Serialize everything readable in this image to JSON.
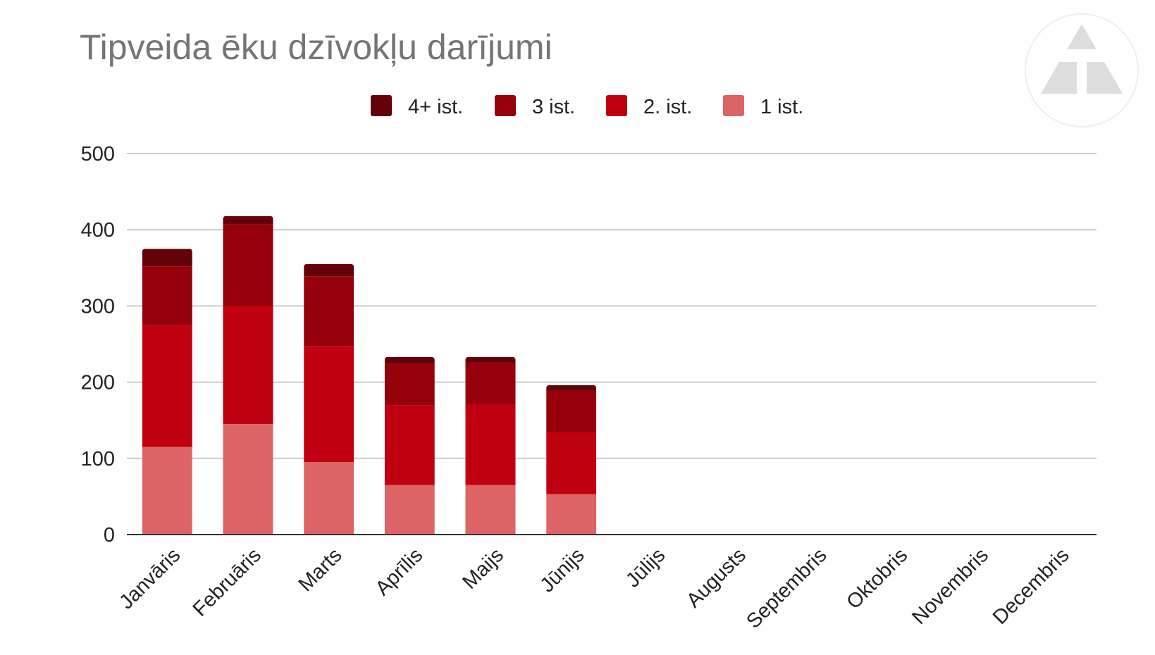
{
  "chart_data": {
    "type": "bar",
    "stacked": true,
    "title": "Tipveida ēku dzīvokļu darījumi",
    "xlabel": "",
    "ylabel": "",
    "ylim": [
      0,
      500
    ],
    "yticks": [
      0,
      100,
      200,
      300,
      400,
      500
    ],
    "grid": true,
    "legend_position": "top",
    "categories": [
      "Janvāris",
      "Februāris",
      "Marts",
      "Aprīlis",
      "Maijs",
      "Jūnijs",
      "Jūlijs",
      "Augusts",
      "Septembris",
      "Oktobris",
      "Novembris",
      "Decembris"
    ],
    "series": [
      {
        "name": "1 ist.",
        "color": "#dc6466",
        "values": [
          115,
          145,
          95,
          65,
          65,
          53,
          0,
          0,
          0,
          0,
          0,
          0
        ]
      },
      {
        "name": "2. ist.",
        "color": "#c00010",
        "values": [
          160,
          155,
          152,
          105,
          106,
          81,
          0,
          0,
          0,
          0,
          0,
          0
        ]
      },
      {
        "name": "3 ist.",
        "color": "#95000a",
        "values": [
          77,
          107,
          92,
          54,
          55,
          55,
          0,
          0,
          0,
          0,
          0,
          0
        ]
      },
      {
        "name": "4+ ist.",
        "color": "#640008",
        "values": [
          23,
          11,
          16,
          9,
          7,
          7,
          0,
          0,
          0,
          0,
          0,
          0
        ]
      }
    ],
    "legend_order": [
      "4+ ist.",
      "3 ist.",
      "2. ist.",
      "1 ist."
    ]
  }
}
